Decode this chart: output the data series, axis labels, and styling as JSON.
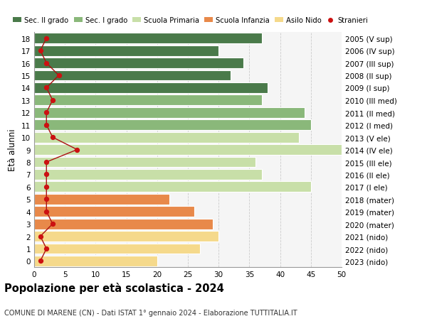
{
  "ages": [
    0,
    1,
    2,
    3,
    4,
    5,
    6,
    7,
    8,
    9,
    10,
    11,
    12,
    13,
    14,
    15,
    16,
    17,
    18
  ],
  "labels_right": [
    "2023 (nido)",
    "2022 (nido)",
    "2021 (nido)",
    "2020 (mater)",
    "2019 (mater)",
    "2018 (mater)",
    "2017 (I ele)",
    "2016 (II ele)",
    "2015 (III ele)",
    "2014 (IV ele)",
    "2013 (V ele)",
    "2012 (I med)",
    "2011 (II med)",
    "2010 (III med)",
    "2009 (I sup)",
    "2008 (II sup)",
    "2007 (III sup)",
    "2006 (IV sup)",
    "2005 (V sup)"
  ],
  "bar_values": [
    20,
    27,
    30,
    29,
    26,
    22,
    45,
    37,
    36,
    50,
    43,
    45,
    44,
    37,
    38,
    32,
    34,
    30,
    37
  ],
  "bar_colors": [
    "#f5d98b",
    "#f5d98b",
    "#f5d98b",
    "#e8894a",
    "#e8894a",
    "#e8894a",
    "#c8dfa8",
    "#c8dfa8",
    "#c8dfa8",
    "#c8dfa8",
    "#c8dfa8",
    "#8ab87a",
    "#8ab87a",
    "#8ab87a",
    "#4a7a4a",
    "#4a7a4a",
    "#4a7a4a",
    "#4a7a4a",
    "#4a7a4a"
  ],
  "stranieri_values": [
    1,
    2,
    1,
    3,
    2,
    2,
    2,
    2,
    2,
    7,
    3,
    2,
    2,
    3,
    2,
    4,
    2,
    1,
    2
  ],
  "xlim": [
    0,
    50
  ],
  "xticks": [
    0,
    5,
    10,
    15,
    20,
    25,
    30,
    35,
    40,
    45,
    50
  ],
  "ylabel_left": "Età alunni",
  "title": "Popolazione per età scolastica - 2024",
  "subtitle": "COMUNE DI MARENE (CN) - Dati ISTAT 1° gennaio 2024 - Elaborazione TUTTITALIA.IT",
  "legend_labels": [
    "Sec. II grado",
    "Sec. I grado",
    "Scuola Primaria",
    "Scuola Infanzia",
    "Asilo Nido",
    "Stranieri"
  ],
  "legend_colors": [
    "#4a7a4a",
    "#8ab87a",
    "#c8dfa8",
    "#e8894a",
    "#f5d98b",
    "#cc2222"
  ],
  "bg_color": "#f5f5f5",
  "grid_color": "#cccccc",
  "bar_height": 0.85
}
